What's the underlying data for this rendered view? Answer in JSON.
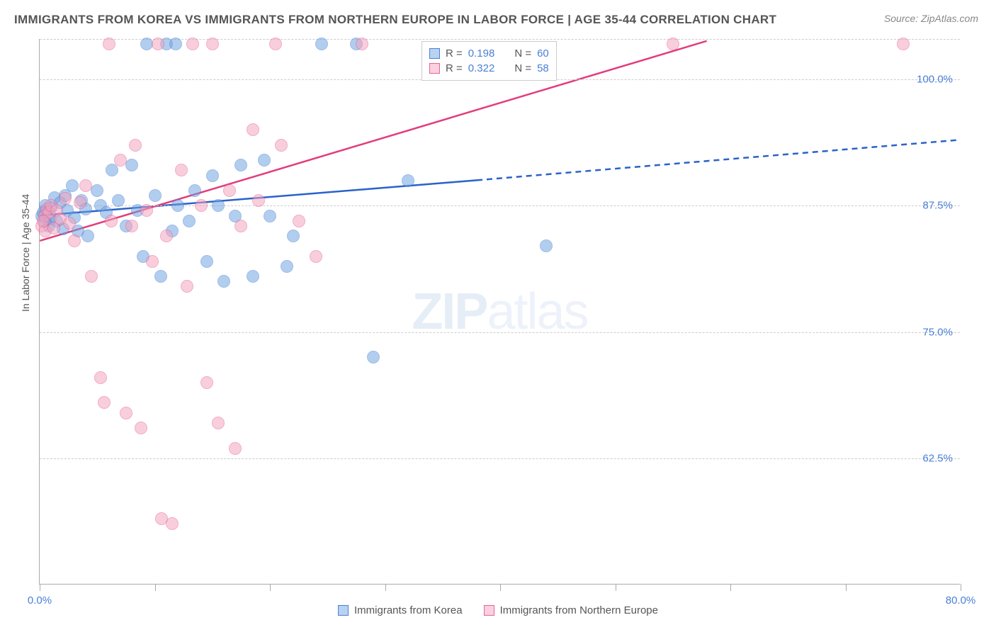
{
  "title": "IMMIGRANTS FROM KOREA VS IMMIGRANTS FROM NORTHERN EUROPE IN LABOR FORCE | AGE 35-44 CORRELATION CHART",
  "source": "Source: ZipAtlas.com",
  "yaxis_label": "In Labor Force | Age 35-44",
  "watermark": {
    "bold": "ZIP",
    "rest": "atlas"
  },
  "chart": {
    "type": "scatter",
    "xlim": [
      0,
      80
    ],
    "ylim": [
      50,
      104
    ],
    "x_ticks": [
      0,
      80
    ],
    "x_tick_labels": [
      "0.0%",
      "80.0%"
    ],
    "x_minor_tick_positions": [
      0,
      10,
      20,
      30,
      40,
      50,
      60,
      70,
      80
    ],
    "y_gridlines": [
      62.5,
      75,
      87.5,
      100,
      104
    ],
    "y_tick_labels": [
      "62.5%",
      "75.0%",
      "87.5%",
      "100.0%",
      ""
    ],
    "grid_color": "#cccccc",
    "axis_color": "#aaaaaa",
    "label_color": "#4a7fd6",
    "title_color": "#555555",
    "title_fontsize": 17,
    "label_fontsize": 15,
    "tick_fontsize": 15,
    "background_color": "#ffffff",
    "marker_radius": 9,
    "marker_fill_opacity": 0.28,
    "marker_stroke_opacity": 0.8,
    "marker_stroke_width": 1.5
  },
  "series": [
    {
      "name": "Immigrants from Korea",
      "color": "#6fa3e0",
      "stroke": "#4a7fd6",
      "line_color": "#2a62c9",
      "R": "0.198",
      "N": "60",
      "trend": {
        "x1": 0,
        "y1": 86.5,
        "x2": 38,
        "y2": 90.0,
        "x2_dash": 80,
        "y2_dash": 94.0
      },
      "points": [
        [
          0.2,
          86.5
        ],
        [
          0.4,
          86.0
        ],
        [
          0.6,
          87.0
        ],
        [
          0.8,
          85.5
        ],
        [
          0.5,
          87.5
        ],
        [
          0.3,
          86.8
        ],
        [
          0.9,
          86.2
        ],
        [
          1.0,
          87.3
        ],
        [
          1.3,
          88.3
        ],
        [
          1.5,
          86.0
        ],
        [
          1.8,
          87.8
        ],
        [
          2.0,
          85.2
        ],
        [
          2.2,
          88.5
        ],
        [
          2.4,
          87.0
        ],
        [
          2.8,
          89.5
        ],
        [
          3.0,
          86.3
        ],
        [
          3.3,
          85.0
        ],
        [
          3.6,
          88.0
        ],
        [
          4.0,
          87.2
        ],
        [
          4.2,
          84.5
        ],
        [
          5.0,
          89.0
        ],
        [
          5.3,
          87.5
        ],
        [
          5.8,
          86.8
        ],
        [
          6.3,
          91.0
        ],
        [
          6.8,
          88.0
        ],
        [
          7.5,
          85.5
        ],
        [
          8.0,
          91.5
        ],
        [
          8.5,
          87.0
        ],
        [
          9.0,
          82.5
        ],
        [
          9.3,
          103.5
        ],
        [
          10.0,
          88.5
        ],
        [
          10.5,
          80.5
        ],
        [
          11.0,
          103.5
        ],
        [
          11.5,
          85.0
        ],
        [
          12.0,
          87.5
        ],
        [
          13.0,
          86.0
        ],
        [
          13.5,
          89.0
        ],
        [
          14.5,
          82.0
        ],
        [
          15.0,
          90.5
        ],
        [
          15.5,
          87.5
        ],
        [
          16.0,
          80.0
        ],
        [
          17.0,
          86.5
        ],
        [
          17.5,
          91.5
        ],
        [
          18.5,
          80.5
        ],
        [
          19.5,
          92.0
        ],
        [
          20.0,
          86.5
        ],
        [
          21.5,
          81.5
        ],
        [
          22.0,
          84.5
        ],
        [
          24.5,
          103.5
        ],
        [
          27.5,
          103.5
        ],
        [
          29.0,
          72.5
        ],
        [
          32.0,
          90.0
        ],
        [
          44.0,
          83.5
        ],
        [
          11.8,
          103.5
        ]
      ]
    },
    {
      "name": "Immigrants from Northern Europe",
      "color": "#f4a3be",
      "stroke": "#e66395",
      "line_color": "#e23d7c",
      "R": "0.322",
      "N": "58",
      "trend": {
        "x1": 0,
        "y1": 84.0,
        "x2": 58,
        "y2": 103.8
      },
      "points": [
        [
          0.2,
          85.5
        ],
        [
          0.4,
          86.5
        ],
        [
          0.6,
          87.2
        ],
        [
          0.8,
          86.8
        ],
        [
          0.5,
          85.0
        ],
        [
          0.3,
          86.0
        ],
        [
          1.0,
          87.5
        ],
        [
          1.2,
          85.3
        ],
        [
          1.5,
          87.0
        ],
        [
          1.8,
          86.2
        ],
        [
          2.2,
          88.2
        ],
        [
          2.6,
          85.8
        ],
        [
          3.0,
          84.0
        ],
        [
          3.5,
          87.8
        ],
        [
          4.0,
          89.5
        ],
        [
          4.5,
          80.5
        ],
        [
          5.3,
          70.5
        ],
        [
          5.6,
          68.0
        ],
        [
          6.0,
          103.5
        ],
        [
          6.2,
          86.0
        ],
        [
          7.0,
          92.0
        ],
        [
          7.5,
          67.0
        ],
        [
          8.0,
          85.5
        ],
        [
          8.3,
          93.5
        ],
        [
          8.8,
          65.5
        ],
        [
          9.3,
          87.0
        ],
        [
          9.8,
          82.0
        ],
        [
          10.3,
          103.5
        ],
        [
          10.6,
          56.5
        ],
        [
          11.0,
          84.5
        ],
        [
          11.5,
          56.0
        ],
        [
          12.3,
          91.0
        ],
        [
          12.8,
          79.5
        ],
        [
          13.3,
          103.5
        ],
        [
          14.0,
          87.5
        ],
        [
          14.5,
          70.0
        ],
        [
          15.0,
          103.5
        ],
        [
          15.5,
          66.0
        ],
        [
          16.5,
          89.0
        ],
        [
          17.0,
          63.5
        ],
        [
          17.5,
          85.5
        ],
        [
          18.5,
          95.0
        ],
        [
          19.0,
          88.0
        ],
        [
          20.5,
          103.5
        ],
        [
          21.0,
          93.5
        ],
        [
          22.5,
          86.0
        ],
        [
          24.0,
          82.5
        ],
        [
          28.0,
          103.5
        ],
        [
          55.0,
          103.5
        ],
        [
          75.0,
          103.5
        ]
      ]
    }
  ],
  "stats_legend": {
    "rows": [
      {
        "swatch_fill": "#b8d2f2",
        "swatch_border": "#4a7fd6",
        "r_label": "R =",
        "r_val": "0.198",
        "n_label": "N =",
        "n_val": "60"
      },
      {
        "swatch_fill": "#fbd0e0",
        "swatch_border": "#e66395",
        "r_label": "R =",
        "r_val": "0.322",
        "n_label": "N =",
        "n_val": "58"
      }
    ]
  },
  "bottom_legend": {
    "items": [
      {
        "fill": "#b8d2f2",
        "border": "#4a7fd6",
        "label": "Immigrants from Korea"
      },
      {
        "fill": "#fbd0e0",
        "border": "#e66395",
        "label": "Immigrants from Northern Europe"
      }
    ]
  }
}
